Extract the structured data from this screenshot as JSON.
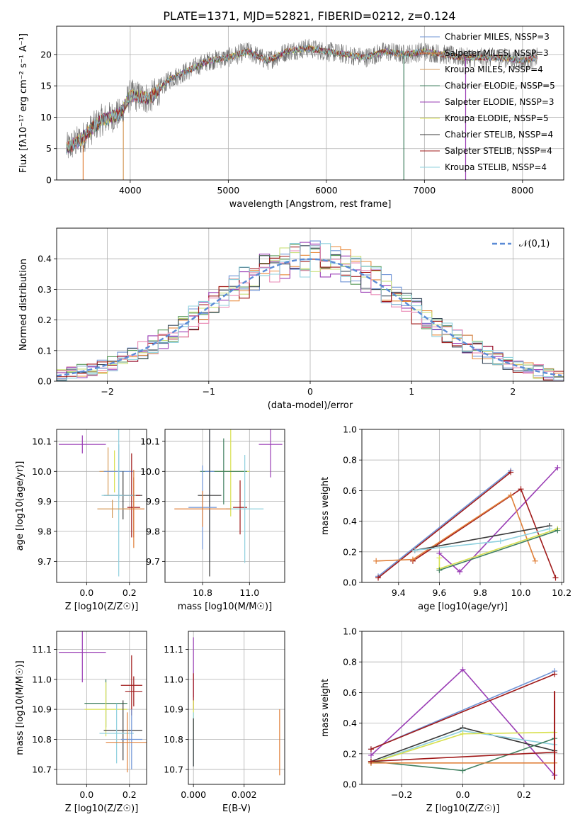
{
  "figure": {
    "title": "PLATE=1371, MJD=52821, FIBERID=0212, z=0.124"
  },
  "model_colors": [
    "#6f94d6",
    "#e0803a",
    "#d49a5a",
    "#3f7f5f",
    "#9a3db5",
    "#d8e050",
    "#3a3a3a",
    "#a01a1a",
    "#8fd0de"
  ],
  "hist_colors": [
    "#6f94d6",
    "#e98a3a",
    "#5a9a5a",
    "#9a3db5",
    "#c9e07a",
    "#3a4a5a",
    "#a01a1a",
    "#e98ab5",
    "#8fd0de"
  ],
  "chart_data": [
    {
      "id": "spectrum",
      "type": "line",
      "xlabel": "wavelength [Angstrom, rest frame]",
      "ylabel": "Flux [fλ10⁻¹⁷ erg cm⁻² s⁻¹ A⁻¹]",
      "xlim": [
        3250,
        8420
      ],
      "ylim": [
        0,
        24.5
      ],
      "xticks": [
        4000,
        5000,
        6000,
        7000,
        8000
      ],
      "yticks": [
        0,
        5,
        10,
        15,
        20
      ],
      "legend_placement": "right",
      "legend": [
        "Chabrier MILES, NSSP=3",
        "Salpeter MILES, NSSP=3",
        "Kroupa MILES, NSSP=4",
        "Chabrier ELODIE, NSSP=5",
        "Salpeter ELODIE, NSSP=3",
        "Kroupa ELODIE, NSSP=5",
        "Chabrier STELIB, NSSP=4",
        "Salpeter STELIB, NSSP=4",
        "Kroupa STELIB, NSSP=4"
      ],
      "data_envelope": {
        "x": [
          3350,
          3500,
          3700,
          3900,
          4000,
          4200,
          4400,
          4600,
          4800,
          5000,
          5200,
          5400,
          5600,
          5800,
          6000,
          6200,
          6400,
          6600,
          6800,
          7000,
          7200,
          7400,
          7600,
          7800,
          8000,
          8150
        ],
        "y": [
          5.0,
          6.5,
          9.5,
          10.5,
          13.5,
          13.0,
          16.0,
          17.5,
          19.0,
          19.5,
          20.5,
          19.0,
          20.5,
          21.0,
          20.5,
          20.0,
          19.5,
          20.5,
          20.0,
          20.5,
          20.0,
          19.5,
          19.5,
          19.5,
          19.0,
          19.5
        ]
      },
      "model_drops": [
        {
          "x": 3520,
          "y_from": 5.5
        },
        {
          "x": 3930,
          "y_from": 9.5
        },
        {
          "x": 6790,
          "y_from": 20.5
        },
        {
          "x": 7420,
          "y_from": 19.5
        }
      ]
    },
    {
      "id": "residual_hist",
      "type": "histogram",
      "xlabel": "(data-model)/error",
      "ylabel": "Normed distribution",
      "xlim": [
        -2.5,
        2.5
      ],
      "ylim": [
        0,
        0.5
      ],
      "xticks": [
        -2,
        -1,
        0,
        1,
        2
      ],
      "yticks": [
        0.0,
        0.1,
        0.2,
        0.3,
        0.4
      ],
      "grid": true,
      "legend_placement": "top-right",
      "reference_curve": {
        "label": "𝒩(0,1)",
        "mu": 0,
        "sigma": 1
      },
      "bins": 50,
      "noise_amplitude": 0.05
    },
    {
      "id": "age_vs_Z",
      "type": "errorbar",
      "xlabel": "Z [log10(Z/Z☉)]",
      "ylabel": "age  [log10(age/yr)]",
      "xlim": [
        -0.14,
        0.28
      ],
      "ylim": [
        9.63,
        10.14
      ],
      "xticks": [
        0.0,
        0.2
      ],
      "yticks": [
        9.7,
        9.8,
        9.9,
        10.0,
        10.1
      ],
      "points": [
        {
          "x": -0.02,
          "y": 10.09,
          "xerr": 0.11,
          "yerr": 0.03,
          "c": 4
        },
        {
          "x": 0.13,
          "y": 10.0,
          "xerr": 0.05,
          "yerr": 0.07,
          "c": 5
        },
        {
          "x": 0.1,
          "y": 10.0,
          "xerr": 0.04,
          "yerr": 0.08,
          "c": 2
        },
        {
          "x": 0.15,
          "y": 10.0,
          "xerr": 0.07,
          "yerr": 0.09,
          "c": 0
        },
        {
          "x": 0.17,
          "y": 9.92,
          "xerr": 0.09,
          "yerr": 0.08,
          "c": 6
        },
        {
          "x": 0.21,
          "y": 9.92,
          "xerr": 0.04,
          "yerr": 0.14,
          "c": 7
        },
        {
          "x": 0.15,
          "y": 9.92,
          "xerr": 0.08,
          "yerr": 0.27,
          "c": 8
        },
        {
          "x": 0.22,
          "y": 9.88,
          "xerr": 0.03,
          "yerr": 0.1,
          "c": 7
        },
        {
          "x": 0.22,
          "y": 9.875,
          "xerr": 0.05,
          "yerr": 0.13,
          "c": 1
        },
        {
          "x": 0.12,
          "y": 9.875,
          "xerr": 0.07,
          "yerr": 0.03,
          "c": 2
        }
      ]
    },
    {
      "id": "age_vs_mass",
      "type": "errorbar",
      "xlabel": "mass [log10(M/M☉)]",
      "ylabel": "",
      "xlim": [
        10.64,
        11.15
      ],
      "ylim": [
        9.63,
        10.14
      ],
      "xticks": [
        10.8,
        11.0
      ],
      "yticks": [
        9.7,
        9.8,
        9.9,
        10.0,
        10.1
      ],
      "points": [
        {
          "x": 11.09,
          "y": 10.09,
          "xerr": 0.05,
          "yerr": 0.11,
          "c": 4
        },
        {
          "x": 10.92,
          "y": 10.0,
          "xerr": 0.08,
          "yerr": 0.15,
          "c": 5
        },
        {
          "x": 10.89,
          "y": 10.0,
          "xerr": 0.1,
          "yerr": 0.11,
          "c": 3
        },
        {
          "x": 10.83,
          "y": 10.0,
          "xerr": 0.02,
          "yerr": 0.3,
          "c": 0
        },
        {
          "x": 10.83,
          "y": 9.92,
          "xerr": 0.05,
          "yerr": 0.27,
          "c": 6
        },
        {
          "x": 10.8,
          "y": 9.88,
          "xerr": 0.06,
          "yerr": 0.14,
          "c": 0
        },
        {
          "x": 10.96,
          "y": 9.88,
          "xerr": 0.03,
          "yerr": 0.09,
          "c": 7
        },
        {
          "x": 10.98,
          "y": 9.875,
          "xerr": 0.08,
          "yerr": 0.18,
          "c": 8
        },
        {
          "x": 10.8,
          "y": 9.875,
          "xerr": 0.12,
          "yerr": 0.06,
          "c": 1
        }
      ]
    },
    {
      "id": "weight_vs_age",
      "type": "line",
      "xlabel": "age  [log10(age/yr)]",
      "ylabel": "mass weight",
      "xlim": [
        9.22,
        10.21
      ],
      "ylim": [
        0,
        1
      ],
      "xticks": [
        9.4,
        9.6,
        9.8,
        10.0,
        10.2
      ],
      "yticks": [
        0.0,
        0.2,
        0.4,
        0.6,
        0.8,
        1.0
      ],
      "grid": true,
      "series": [
        {
          "c": 0,
          "x": [
            9.3,
            9.95
          ],
          "y": [
            0.04,
            0.73
          ]
        },
        {
          "c": 7,
          "x": [
            9.3,
            9.95
          ],
          "y": [
            0.03,
            0.72
          ]
        },
        {
          "c": 4,
          "x": [
            9.6,
            9.7,
            10.18
          ],
          "y": [
            0.19,
            0.07,
            0.75
          ]
        },
        {
          "c": 7,
          "x": [
            9.47,
            10.0,
            10.17
          ],
          "y": [
            0.14,
            0.61,
            0.03
          ]
        },
        {
          "c": 1,
          "x": [
            9.29,
            9.47,
            9.95,
            10.07
          ],
          "y": [
            0.14,
            0.15,
            0.57,
            0.14
          ]
        },
        {
          "c": 6,
          "x": [
            9.48,
            10.14
          ],
          "y": [
            0.21,
            0.37
          ]
        },
        {
          "c": 8,
          "x": [
            9.48,
            9.9,
            10.14
          ],
          "y": [
            0.21,
            0.27,
            0.35
          ]
        },
        {
          "c": 5,
          "x": [
            9.6,
            9.6,
            10.18
          ],
          "y": [
            0.16,
            0.09,
            0.35
          ]
        },
        {
          "c": 3,
          "x": [
            9.6,
            10.18
          ],
          "y": [
            0.08,
            0.34
          ]
        }
      ]
    },
    {
      "id": "mass_vs_Z",
      "type": "errorbar",
      "xlabel": "Z [log10(Z/Z☉)]",
      "ylabel": "mass [log10(M/M☉)]",
      "xlim": [
        -0.14,
        0.28
      ],
      "ylim": [
        10.65,
        11.16
      ],
      "xticks": [
        0.0,
        0.2
      ],
      "yticks": [
        10.7,
        10.8,
        10.9,
        11.0,
        11.1
      ],
      "points": [
        {
          "x": -0.02,
          "y": 11.09,
          "xerr": 0.11,
          "yerr": 0.1,
          "c": 4
        },
        {
          "x": 0.21,
          "y": 10.98,
          "xerr": 0.05,
          "yerr": 0.1,
          "c": 7
        },
        {
          "x": 0.22,
          "y": 10.96,
          "xerr": 0.04,
          "yerr": 0.05,
          "c": 7
        },
        {
          "x": 0.09,
          "y": 10.92,
          "xerr": 0.1,
          "yerr": 0.08,
          "c": 3
        },
        {
          "x": 0.09,
          "y": 10.9,
          "xerr": 0.1,
          "yerr": 0.09,
          "c": 5
        },
        {
          "x": 0.17,
          "y": 10.83,
          "xerr": 0.09,
          "yerr": 0.1,
          "c": 6
        },
        {
          "x": 0.14,
          "y": 10.82,
          "xerr": 0.08,
          "yerr": 0.1,
          "c": 8
        },
        {
          "x": 0.21,
          "y": 10.8,
          "xerr": 0.05,
          "yerr": 0.1,
          "c": 0
        },
        {
          "x": 0.19,
          "y": 10.79,
          "xerr": 0.1,
          "yerr": 0.1,
          "c": 1
        }
      ]
    },
    {
      "id": "mass_vs_ebv",
      "type": "errorbar",
      "xlabel": "E(B-V)",
      "ylabel": "",
      "xlim": [
        -0.0002,
        0.0036
      ],
      "ylim": [
        10.65,
        11.16
      ],
      "xticks": [
        0.0,
        0.002
      ],
      "xtick_labels": [
        "0.000",
        "0.002"
      ],
      "yticks": [
        10.7,
        10.8,
        10.9,
        11.0,
        11.1
      ],
      "points": [
        {
          "x": 0.0,
          "y": 11.04,
          "xerr": 0.0,
          "yerr": 0.1,
          "c": 4
        },
        {
          "x": 0.0,
          "y": 10.96,
          "xerr": 0.0,
          "yerr": 0.06,
          "c": 7
        },
        {
          "x": 0.0,
          "y": 10.88,
          "xerr": 0.0,
          "yerr": 0.05,
          "c": 5
        },
        {
          "x": 0.0,
          "y": 10.8,
          "xerr": 0.0,
          "yerr": 0.09,
          "c": 8
        },
        {
          "x": 0.0,
          "y": 10.79,
          "xerr": 0.0,
          "yerr": 0.08,
          "c": 6
        },
        {
          "x": 0.0034,
          "y": 10.79,
          "xerr": 0.0,
          "yerr": 0.11,
          "c": 1
        }
      ]
    },
    {
      "id": "weight_vs_Z",
      "type": "line",
      "xlabel": "Z [log10(Z/Z☉)]",
      "ylabel": "mass weight",
      "xlim": [
        -0.33,
        0.33
      ],
      "ylim": [
        0,
        1
      ],
      "xticks": [
        -0.2,
        0.0,
        0.2
      ],
      "yticks": [
        0.0,
        0.2,
        0.4,
        0.6,
        0.8,
        1.0
      ],
      "grid": true,
      "series": [
        {
          "c": 4,
          "x": [
            -0.3,
            0.0,
            0.3
          ],
          "y": [
            0.19,
            0.75,
            0.06
          ]
        },
        {
          "c": 0,
          "x": [
            -0.3,
            0.3
          ],
          "y": [
            0.23,
            0.74
          ]
        },
        {
          "c": 7,
          "x": [
            -0.3,
            0.3
          ],
          "y": [
            0.23,
            0.72
          ]
        },
        {
          "c": 6,
          "x": [
            -0.3,
            0.0,
            0.3
          ],
          "y": [
            0.15,
            0.37,
            0.22
          ]
        },
        {
          "c": 8,
          "x": [
            -0.3,
            0.0,
            0.3
          ],
          "y": [
            0.14,
            0.35,
            0.26
          ]
        },
        {
          "c": 5,
          "x": [
            -0.3,
            0.0,
            0.3
          ],
          "y": [
            0.14,
            0.33,
            0.34
          ]
        },
        {
          "c": 3,
          "x": [
            -0.3,
            0.0,
            0.3
          ],
          "y": [
            0.15,
            0.09,
            0.3
          ]
        },
        {
          "c": 1,
          "x": [
            -0.3,
            0.3
          ],
          "y": [
            0.14,
            0.14
          ]
        },
        {
          "c": 7,
          "x": [
            -0.3,
            0.3
          ],
          "y": [
            0.15,
            0.21
          ]
        }
      ],
      "extra_bars": [
        {
          "x": 0.3,
          "y0": 0.03,
          "y1": 0.61,
          "c": 7
        }
      ]
    }
  ]
}
